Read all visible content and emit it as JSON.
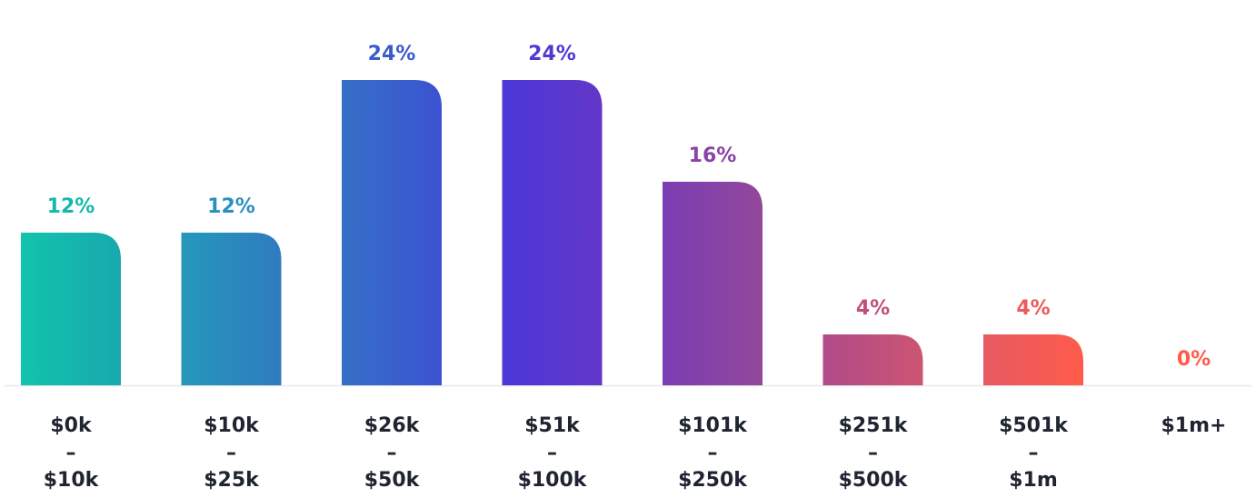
{
  "chart_data": {
    "type": "bar",
    "title": "",
    "xlabel": "",
    "ylabel": "",
    "ylim": [
      0,
      24
    ],
    "grid": false,
    "categories": [
      [
        "$0k",
        "–",
        "$10k"
      ],
      [
        "$10k",
        "–",
        "$25k"
      ],
      [
        "$26k",
        "–",
        "$50k"
      ],
      [
        "$51k",
        "–",
        "$100k"
      ],
      [
        "$101k",
        "–",
        "$250k"
      ],
      [
        "$251k",
        "–",
        "$500k"
      ],
      [
        "$501k",
        "–",
        "$1m"
      ],
      [
        "$1m+"
      ]
    ],
    "values": [
      12,
      12,
      24,
      24,
      16,
      4,
      4,
      0
    ],
    "value_labels": [
      "12%",
      "12%",
      "24%",
      "24%",
      "16%",
      "4%",
      "4%",
      "0%"
    ],
    "bar_colors": [
      [
        "#12c4ac",
        "#19a8ae"
      ],
      [
        "#2598ba",
        "#2f7bc0"
      ],
      [
        "#3570c6",
        "#3c52d2"
      ],
      [
        "#4a37d8",
        "#6337c8"
      ],
      [
        "#7a3db4",
        "#92489a"
      ],
      [
        "#b04a8a",
        "#cc5572"
      ],
      [
        "#e65a62",
        "#ff5b4a"
      ],
      [
        "#ff5b4a",
        "#ff5b4a"
      ]
    ],
    "label_colors": [
      "#16b8ac",
      "#2a8fbf",
      "#3b5bcc",
      "#5038d2",
      "#8a43a6",
      "#c04f7d",
      "#ee5a5a",
      "#ff5b4a"
    ],
    "axis_color": "#e8e8ec"
  }
}
